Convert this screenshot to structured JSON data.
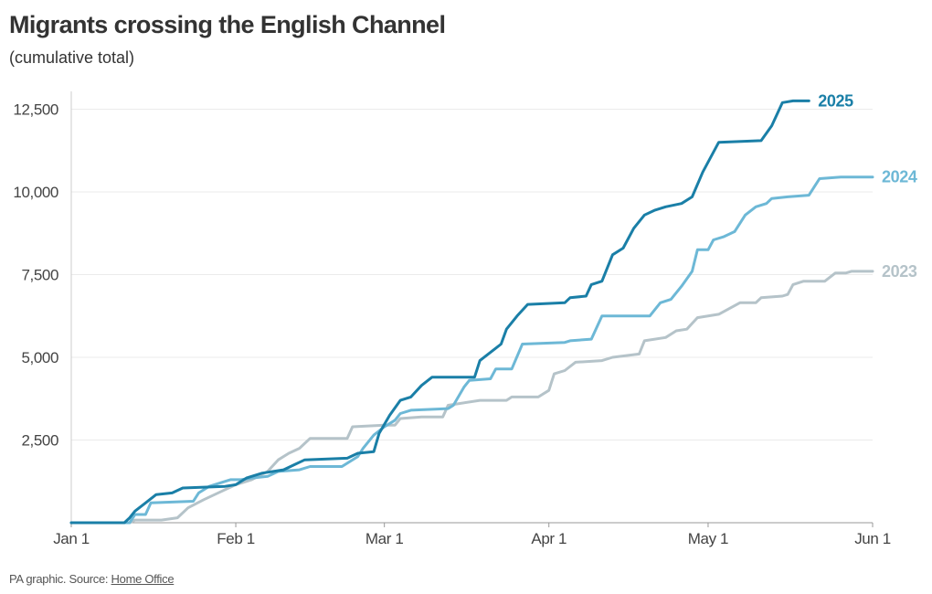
{
  "header": {
    "title": "Migrants crossing the English Channel",
    "subtitle": "(cumulative total)"
  },
  "footer": {
    "prefix": "PA graphic. Source: ",
    "source_link": "Home Office"
  },
  "chart_data": {
    "type": "line",
    "title": "Migrants crossing the English Channel",
    "subtitle": "(cumulative total)",
    "xlabel": "",
    "ylabel": "",
    "x_unit": "day of year",
    "xlim": [
      1,
      152
    ],
    "ylim": [
      0,
      13000
    ],
    "yticks": [
      2500,
      5000,
      7500,
      10000,
      12500
    ],
    "ytick_labels": [
      "2,500",
      "5,000",
      "7,500",
      "10,000",
      "12,500"
    ],
    "xticks": [
      1,
      32,
      60,
      91,
      121,
      152
    ],
    "xtick_labels": [
      "Jan 1",
      "Feb 1",
      "Mar 1",
      "Apr 1",
      "May 1",
      "Jun 1"
    ],
    "grid": "horizontal",
    "legend": "direct labels at line ends",
    "series": [
      {
        "name": "2023",
        "color": "#b5c3c9",
        "points": [
          [
            1,
            0
          ],
          [
            12,
            0
          ],
          [
            13,
            80
          ],
          [
            18,
            80
          ],
          [
            21,
            150
          ],
          [
            23,
            450
          ],
          [
            26,
            700
          ],
          [
            30,
            1000
          ],
          [
            32,
            1150
          ],
          [
            35,
            1300
          ],
          [
            38,
            1550
          ],
          [
            40,
            1900
          ],
          [
            42,
            2100
          ],
          [
            44,
            2250
          ],
          [
            46,
            2550
          ],
          [
            53,
            2550
          ],
          [
            54,
            2900
          ],
          [
            60,
            2950
          ],
          [
            62,
            2950
          ],
          [
            63,
            3150
          ],
          [
            67,
            3200
          ],
          [
            71,
            3200
          ],
          [
            72,
            3550
          ],
          [
            78,
            3700
          ],
          [
            83,
            3700
          ],
          [
            84,
            3800
          ],
          [
            89,
            3800
          ],
          [
            91,
            4000
          ],
          [
            92,
            4500
          ],
          [
            94,
            4600
          ],
          [
            96,
            4850
          ],
          [
            101,
            4900
          ],
          [
            103,
            5000
          ],
          [
            108,
            5100
          ],
          [
            109,
            5500
          ],
          [
            113,
            5600
          ],
          [
            115,
            5800
          ],
          [
            117,
            5850
          ],
          [
            119,
            6200
          ],
          [
            123,
            6300
          ],
          [
            127,
            6650
          ],
          [
            130,
            6650
          ],
          [
            131,
            6800
          ],
          [
            135,
            6850
          ],
          [
            136,
            6900
          ],
          [
            137,
            7200
          ],
          [
            139,
            7300
          ],
          [
            143,
            7300
          ],
          [
            145,
            7550
          ],
          [
            147,
            7550
          ],
          [
            148,
            7600
          ],
          [
            152,
            7600
          ]
        ]
      },
      {
        "name": "2024",
        "color": "#6db8d6",
        "points": [
          [
            1,
            0
          ],
          [
            12,
            0
          ],
          [
            13,
            250
          ],
          [
            15,
            250
          ],
          [
            16,
            600
          ],
          [
            24,
            650
          ],
          [
            25,
            900
          ],
          [
            27,
            1100
          ],
          [
            29,
            1200
          ],
          [
            31,
            1300
          ],
          [
            33,
            1300
          ],
          [
            35,
            1350
          ],
          [
            38,
            1400
          ],
          [
            40,
            1550
          ],
          [
            44,
            1600
          ],
          [
            46,
            1700
          ],
          [
            52,
            1700
          ],
          [
            55,
            2000
          ],
          [
            56,
            2250
          ],
          [
            58,
            2650
          ],
          [
            60,
            2900
          ],
          [
            62,
            3100
          ],
          [
            63,
            3300
          ],
          [
            65,
            3400
          ],
          [
            72,
            3450
          ],
          [
            73,
            3550
          ],
          [
            75,
            4100
          ],
          [
            76,
            4300
          ],
          [
            80,
            4350
          ],
          [
            81,
            4650
          ],
          [
            84,
            4650
          ],
          [
            86,
            5400
          ],
          [
            94,
            5450
          ],
          [
            95,
            5500
          ],
          [
            99,
            5550
          ],
          [
            101,
            6250
          ],
          [
            110,
            6250
          ],
          [
            112,
            6650
          ],
          [
            114,
            6750
          ],
          [
            116,
            7150
          ],
          [
            118,
            7600
          ],
          [
            119,
            8250
          ],
          [
            121,
            8250
          ],
          [
            122,
            8550
          ],
          [
            124,
            8650
          ],
          [
            126,
            8800
          ],
          [
            128,
            9300
          ],
          [
            130,
            9550
          ],
          [
            132,
            9650
          ],
          [
            133,
            9800
          ],
          [
            136,
            9850
          ],
          [
            140,
            9900
          ],
          [
            142,
            10400
          ],
          [
            146,
            10450
          ],
          [
            152,
            10450
          ]
        ]
      },
      {
        "name": "2025",
        "color": "#1a7fa7",
        "points": [
          [
            1,
            0
          ],
          [
            11,
            0
          ],
          [
            12,
            150
          ],
          [
            13,
            350
          ],
          [
            15,
            600
          ],
          [
            17,
            850
          ],
          [
            20,
            900
          ],
          [
            22,
            1050
          ],
          [
            30,
            1100
          ],
          [
            32,
            1150
          ],
          [
            34,
            1350
          ],
          [
            37,
            1500
          ],
          [
            41,
            1600
          ],
          [
            43,
            1750
          ],
          [
            45,
            1900
          ],
          [
            53,
            1950
          ],
          [
            55,
            2100
          ],
          [
            58,
            2150
          ],
          [
            59,
            2700
          ],
          [
            61,
            3250
          ],
          [
            63,
            3700
          ],
          [
            65,
            3800
          ],
          [
            67,
            4150
          ],
          [
            69,
            4400
          ],
          [
            77,
            4400
          ],
          [
            78,
            4900
          ],
          [
            82,
            5400
          ],
          [
            83,
            5850
          ],
          [
            85,
            6250
          ],
          [
            87,
            6600
          ],
          [
            94,
            6650
          ],
          [
            95,
            6800
          ],
          [
            98,
            6850
          ],
          [
            99,
            7200
          ],
          [
            101,
            7300
          ],
          [
            103,
            8100
          ],
          [
            105,
            8300
          ],
          [
            107,
            8900
          ],
          [
            109,
            9300
          ],
          [
            111,
            9450
          ],
          [
            113,
            9550
          ],
          [
            116,
            9650
          ],
          [
            118,
            9850
          ],
          [
            120,
            10600
          ],
          [
            123,
            11500
          ],
          [
            131,
            11550
          ],
          [
            133,
            12000
          ],
          [
            135,
            12700
          ],
          [
            137,
            12750
          ],
          [
            140,
            12750
          ]
        ]
      }
    ]
  }
}
